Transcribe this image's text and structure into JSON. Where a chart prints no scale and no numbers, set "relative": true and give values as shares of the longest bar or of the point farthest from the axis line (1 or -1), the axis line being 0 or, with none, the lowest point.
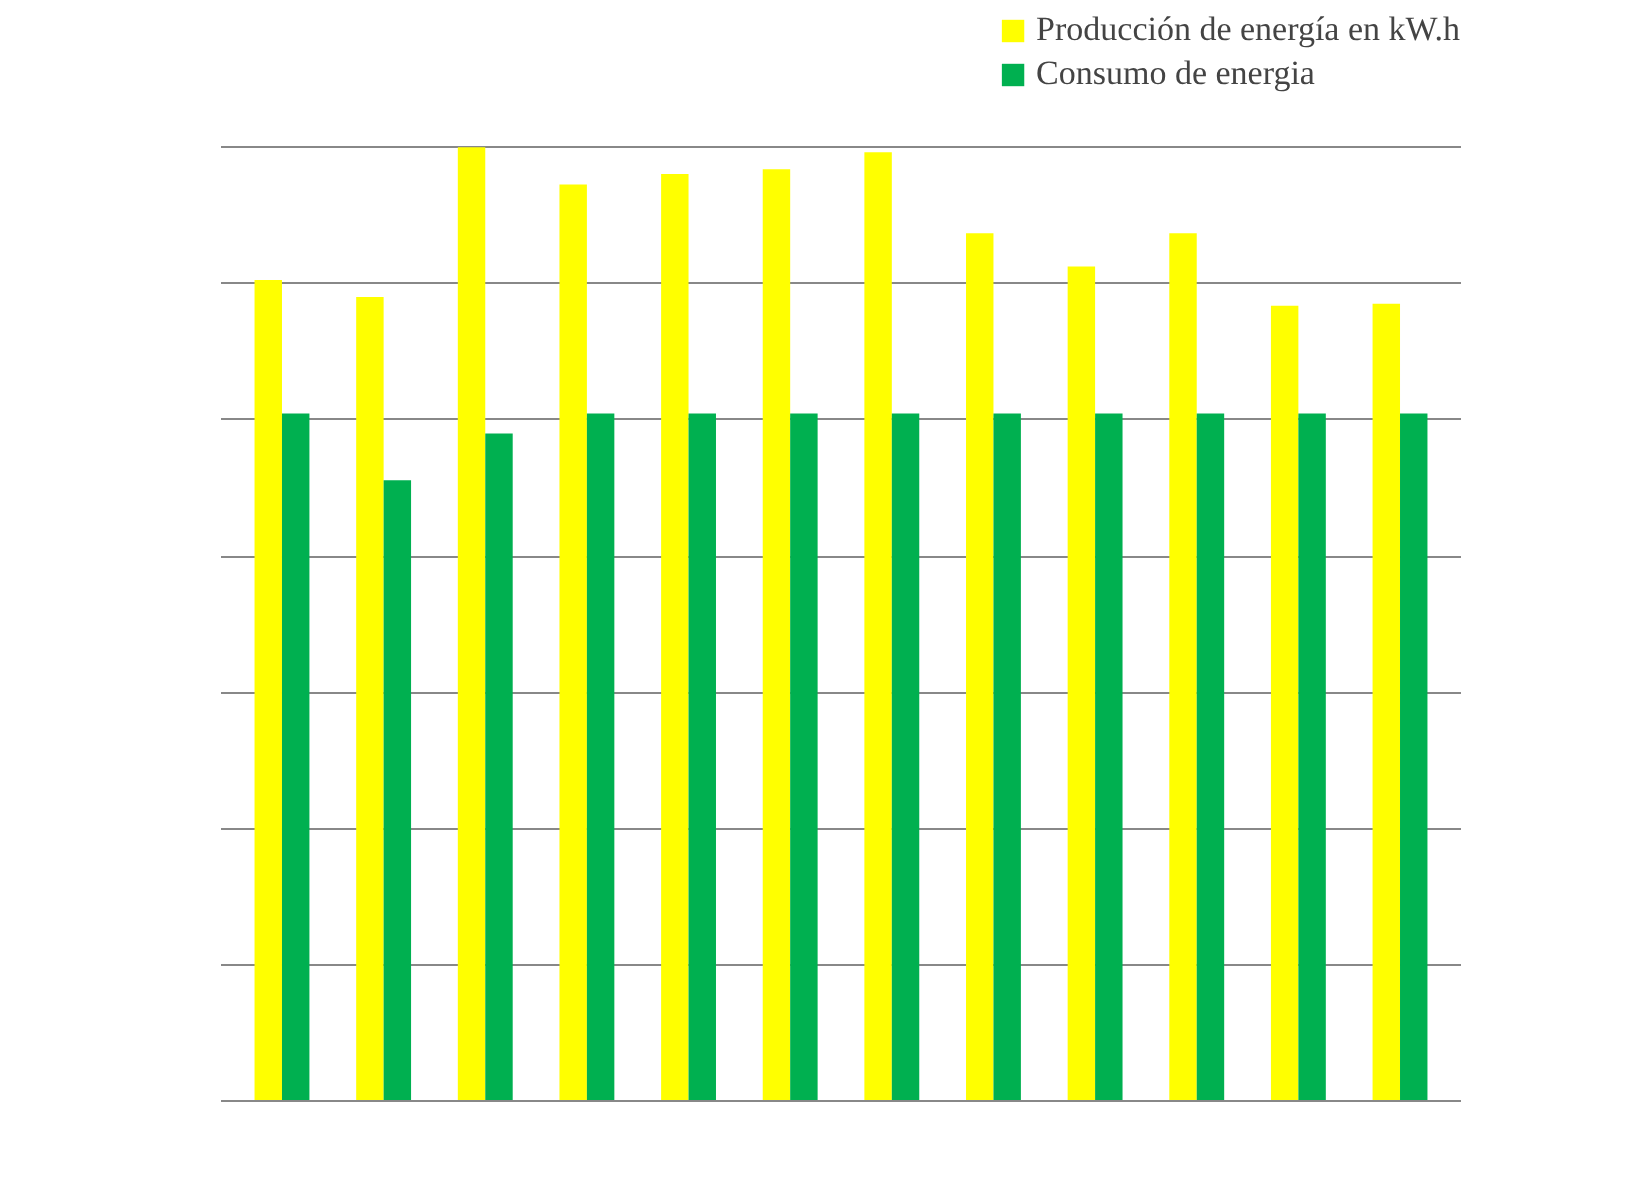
{
  "chart_data": {
    "type": "bar",
    "relative": true,
    "categories": [
      null,
      null,
      null,
      null,
      null,
      null,
      null,
      null,
      null,
      null,
      null,
      null
    ],
    "series": [
      {
        "name": "Producción de energía en kW.h",
        "color": "#ffff00",
        "values": [
          0.861,
          0.843,
          1,
          0.961,
          0.972,
          0.977,
          0.995,
          0.91,
          0.875,
          0.91,
          0.834,
          0.836
        ]
      },
      {
        "name": "Consumo de energia",
        "color": "#00b050",
        "values": [
          0.721,
          0.651,
          0.7,
          0.721,
          0.721,
          0.721,
          0.721,
          0.721,
          0.721,
          0.721,
          0.721,
          0.721
        ]
      }
    ],
    "grid": "y",
    "legend": "top right"
  }
}
